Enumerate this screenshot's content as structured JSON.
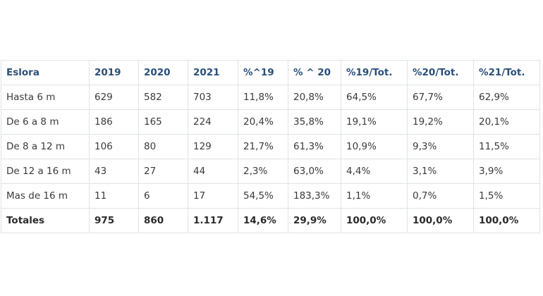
{
  "table": {
    "headers": [
      "Eslora",
      "2019",
      "2020",
      "2021",
      "%^19",
      "% ^ 20",
      "%19/Tot.",
      "%20/Tot.",
      "%21/Tot."
    ],
    "rows": [
      [
        "Hasta 6 m",
        "629",
        "582",
        "703",
        "11,8%",
        "20,8%",
        "64,5%",
        "67,7%",
        "62,9%"
      ],
      [
        "De 6 a 8 m",
        "186",
        "165",
        "224",
        "20,4%",
        "35,8%",
        "19,1%",
        "19,2%",
        "20,1%"
      ],
      [
        "De 8 a 12 m",
        "106",
        "80",
        "129",
        "21,7%",
        "61,3%",
        "10,9%",
        "9,3%",
        "11,5%"
      ],
      [
        "De 12 a 16 m",
        "43",
        "27",
        "44",
        "2,3%",
        "63,0%",
        "4,4%",
        "3,1%",
        "3,9%"
      ],
      [
        "Mas de 16 m",
        "11",
        "6",
        "17",
        "54,5%",
        "183,3%",
        "1,1%",
        "0,7%",
        "1,5%"
      ]
    ],
    "totals": [
      "Totales",
      "975",
      "860",
      "1.117",
      "14,6%",
      "29,9%",
      "100,0%",
      "100,0%",
      "100,0%"
    ]
  },
  "colors": {
    "header_text": "#2a4f7a",
    "border": "#dfe3e8",
    "body_text": "#3a3a3a"
  }
}
